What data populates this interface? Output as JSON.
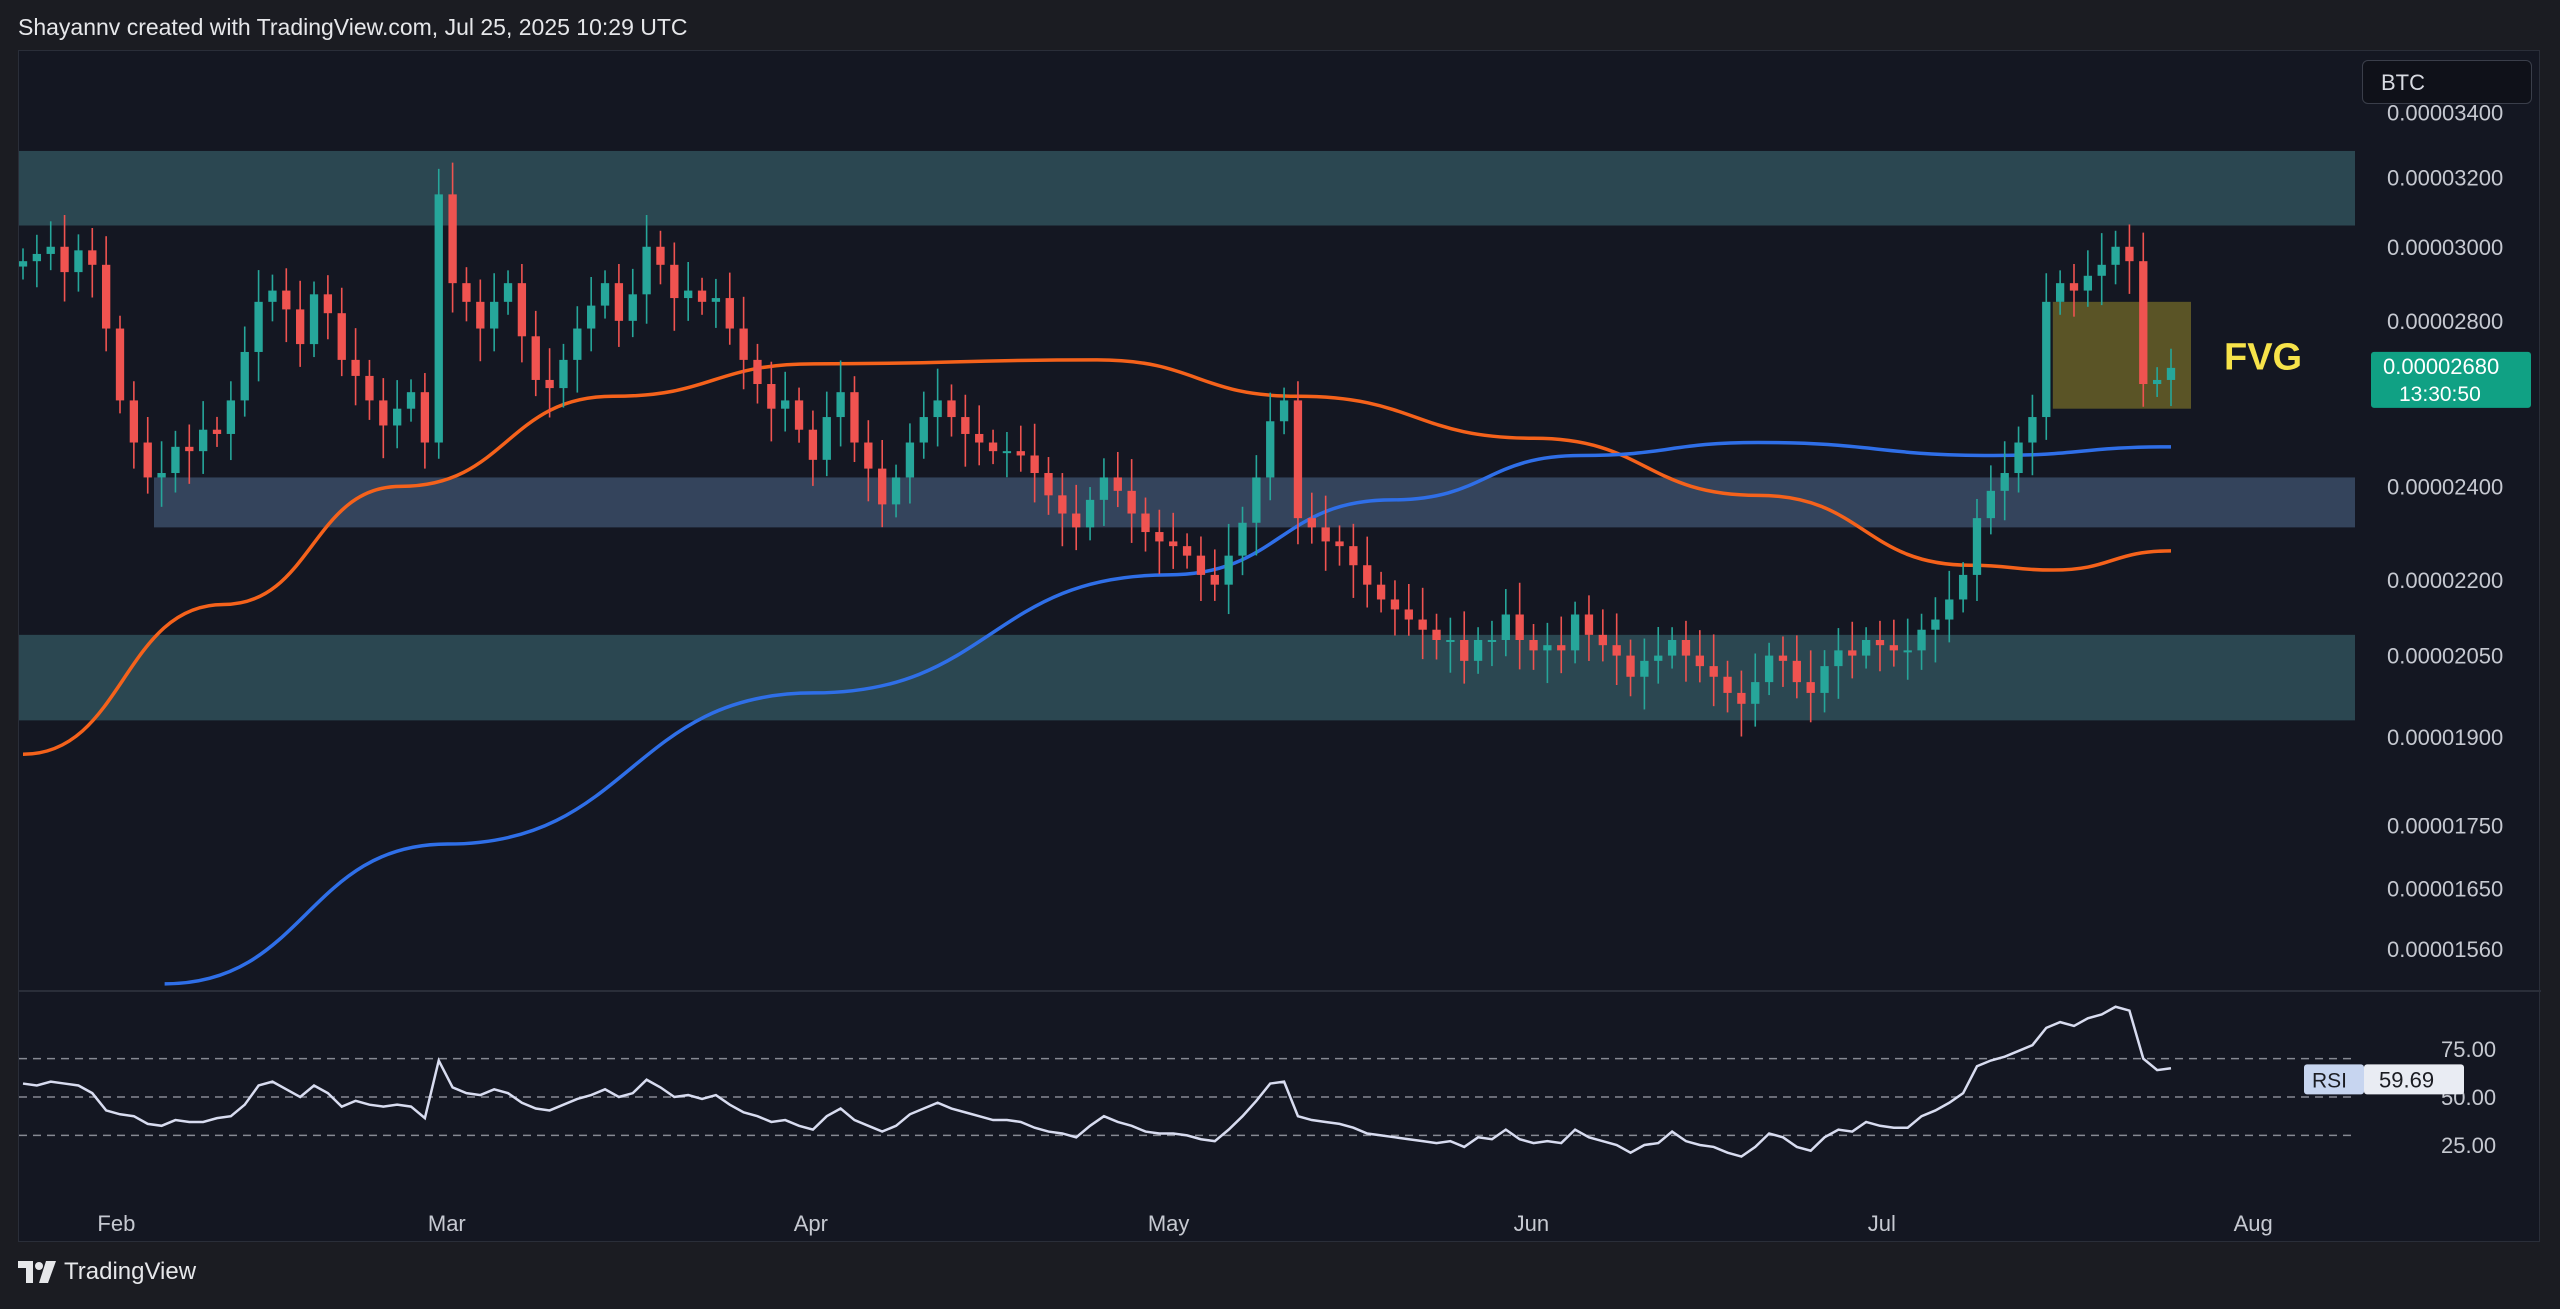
{
  "header": {
    "caption": "Shayannv created with TradingView.com, Jul 25, 2025 10:29 UTC"
  },
  "ticker": {
    "label": "BTC"
  },
  "footer": {
    "brand": "TradingView",
    "logo_icon": "tradingview-logo-icon"
  },
  "colors": {
    "background": "#141722",
    "bull": "#26a69a",
    "bear": "#ef5350",
    "ma_orange": "#f5621b",
    "ma_blue": "#2f6fe8",
    "zone": "#2d4c57",
    "zone_mid": "#3a4c66",
    "fvg": "#6b6428",
    "fvg_text": "#f7e34a",
    "rsi_line": "#d8dcf0",
    "price_badge": "#10a184"
  },
  "chart_data": {
    "type": "candlestick",
    "symbol": "BTC",
    "scale": "log",
    "y_ticks": [
      "0.00003400",
      "0.00003200",
      "0.00003000",
      "0.00002800",
      "0.00002400",
      "0.00002200",
      "0.00002050",
      "0.00001900",
      "0.00001750",
      "0.00001650",
      "0.00001560"
    ],
    "ylim": [
      1.5e-05,
      3.6e-05
    ],
    "x_ticks": [
      "Feb",
      "Mar",
      "Apr",
      "May",
      "Jun",
      "Jul",
      "Aug"
    ],
    "date_range": [
      "2025-01-24",
      "2025-07-25"
    ],
    "current_price": {
      "value": "0.00002680",
      "countdown": "13:30:50"
    },
    "zones": [
      {
        "from": 3.06e-05,
        "to": 3.28e-05
      },
      {
        "from": 2.31e-05,
        "to": 2.42e-05
      },
      {
        "from": 1.93e-05,
        "to": 2.09e-05
      }
    ],
    "fvg": {
      "label": "FVG",
      "from": 2.58e-05,
      "to": 2.85e-05,
      "start": "2025-07-16",
      "end": "2025-07-25"
    },
    "moving_averages": [
      {
        "color": "orange",
        "points": [
          [
            "2025-01-24",
            1.87e-05
          ],
          [
            "2025-02-10",
            2.15e-05
          ],
          [
            "2025-02-25",
            2.4e-05
          ],
          [
            "2025-03-15",
            2.61e-05
          ],
          [
            "2025-04-01",
            2.69e-05
          ],
          [
            "2025-04-25",
            2.7e-05
          ],
          [
            "2025-05-12",
            2.61e-05
          ],
          [
            "2025-06-01",
            2.51e-05
          ],
          [
            "2025-06-20",
            2.38e-05
          ],
          [
            "2025-07-08",
            2.23e-05
          ],
          [
            "2025-07-15",
            2.22e-05
          ],
          [
            "2025-07-25",
            2.26e-05
          ]
        ]
      },
      {
        "color": "blue",
        "points": [
          [
            "2025-02-05",
            1.51e-05
          ],
          [
            "2025-03-01",
            1.72e-05
          ],
          [
            "2025-04-01",
            1.98e-05
          ],
          [
            "2025-05-01",
            2.21e-05
          ],
          [
            "2025-05-20",
            2.37e-05
          ],
          [
            "2025-06-05",
            2.47e-05
          ],
          [
            "2025-06-20",
            2.5e-05
          ],
          [
            "2025-07-10",
            2.47e-05
          ],
          [
            "2025-07-25",
            2.49e-05
          ]
        ]
      }
    ],
    "close": [
      2.96e-05,
      2.98e-05,
      3e-05,
      2.93e-05,
      2.99e-05,
      2.95e-05,
      2.78e-05,
      2.6e-05,
      2.5e-05,
      2.42e-05,
      2.43e-05,
      2.49e-05,
      2.48e-05,
      2.53e-05,
      2.52e-05,
      2.6e-05,
      2.72e-05,
      2.85e-05,
      2.88e-05,
      2.83e-05,
      2.74e-05,
      2.87e-05,
      2.82e-05,
      2.7e-05,
      2.66e-05,
      2.6e-05,
      2.54e-05,
      2.58e-05,
      2.62e-05,
      2.5e-05,
      3.15e-05,
      2.9e-05,
      2.85e-05,
      2.78e-05,
      2.85e-05,
      2.9e-05,
      2.76e-05,
      2.65e-05,
      2.63e-05,
      2.7e-05,
      2.78e-05,
      2.84e-05,
      2.9e-05,
      2.8e-05,
      2.87e-05,
      3e-05,
      2.95e-05,
      2.86e-05,
      2.88e-05,
      2.85e-05,
      2.86e-05,
      2.78e-05,
      2.7e-05,
      2.64e-05,
      2.58e-05,
      2.6e-05,
      2.53e-05,
      2.46e-05,
      2.56e-05,
      2.62e-05,
      2.5e-05,
      2.44e-05,
      2.36e-05,
      2.42e-05,
      2.5e-05,
      2.56e-05,
      2.6e-05,
      2.56e-05,
      2.52e-05,
      2.5e-05,
      2.48e-05,
      2.48e-05,
      2.47e-05,
      2.43e-05,
      2.38e-05,
      2.34e-05,
      2.31e-05,
      2.37e-05,
      2.42e-05,
      2.39e-05,
      2.34e-05,
      2.3e-05,
      2.28e-05,
      2.27e-05,
      2.25e-05,
      2.21e-05,
      2.19e-05,
      2.25e-05,
      2.32e-05,
      2.42e-05,
      2.55e-05,
      2.6e-05,
      2.33e-05,
      2.31e-05,
      2.28e-05,
      2.27e-05,
      2.23e-05,
      2.19e-05,
      2.16e-05,
      2.14e-05,
      2.12e-05,
      2.1e-05,
      2.08e-05,
      2.08e-05,
      2.04e-05,
      2.08e-05,
      2.08e-05,
      2.13e-05,
      2.08e-05,
      2.06e-05,
      2.07e-05,
      2.06e-05,
      2.13e-05,
      2.09e-05,
      2.07e-05,
      2.05e-05,
      2.01e-05,
      2.04e-05,
      2.05e-05,
      2.08e-05,
      2.05e-05,
      2.03e-05,
      2.01e-05,
      1.98e-05,
      1.96e-05,
      2e-05,
      2.05e-05,
      2.04e-05,
      2e-05,
      1.98e-05,
      2.03e-05,
      2.06e-05,
      2.05e-05,
      2.08e-05,
      2.07e-05,
      2.06e-05,
      2.06e-05,
      2.1e-05,
      2.12e-05,
      2.16e-05,
      2.21e-05,
      2.33e-05,
      2.39e-05,
      2.43e-05,
      2.5e-05,
      2.56e-05,
      2.85e-05,
      2.9e-05,
      2.88e-05,
      2.92e-05,
      2.95e-05,
      3e-05,
      2.96e-05,
      2.64e-05,
      2.65e-05,
      2.68e-05
    ],
    "rsi": {
      "label": "RSI",
      "value": "59.69",
      "levels": [
        70,
        50,
        30
      ],
      "y_ticks": [
        "75.00",
        "50.00",
        "25.00"
      ],
      "values": [
        57,
        56,
        58,
        57,
        56,
        52,
        43,
        41,
        40,
        36,
        35,
        38,
        37,
        37,
        39,
        40,
        46,
        56,
        58,
        54,
        50,
        56,
        52,
        45,
        48,
        46,
        45,
        46,
        45,
        39,
        69,
        55,
        52,
        51,
        54,
        52,
        47,
        44,
        43,
        46,
        49,
        51,
        54,
        50,
        52,
        59,
        55,
        50,
        51,
        49,
        51,
        46,
        42,
        40,
        37,
        38,
        35,
        33,
        40,
        44,
        38,
        35,
        32,
        35,
        41,
        44,
        47,
        44,
        42,
        40,
        38,
        38,
        37,
        34,
        32,
        31,
        29,
        35,
        40,
        37,
        35,
        32,
        31,
        31,
        30,
        28,
        27,
        33,
        40,
        48,
        57,
        58,
        40,
        38,
        37,
        36,
        34,
        31,
        30,
        29,
        28,
        27,
        26,
        27,
        24,
        29,
        28,
        33,
        28,
        26,
        27,
        26,
        33,
        29,
        27,
        25,
        21,
        25,
        26,
        32,
        27,
        25,
        24,
        21,
        19,
        24,
        31,
        29,
        24,
        22,
        29,
        33,
        32,
        37,
        35,
        34,
        34,
        40,
        43,
        47,
        52,
        66,
        69,
        71,
        74,
        77,
        86,
        89,
        87,
        91,
        93,
        97,
        95,
        70,
        64,
        65
      ]
    },
    "annotations": [
      "FVG"
    ]
  }
}
